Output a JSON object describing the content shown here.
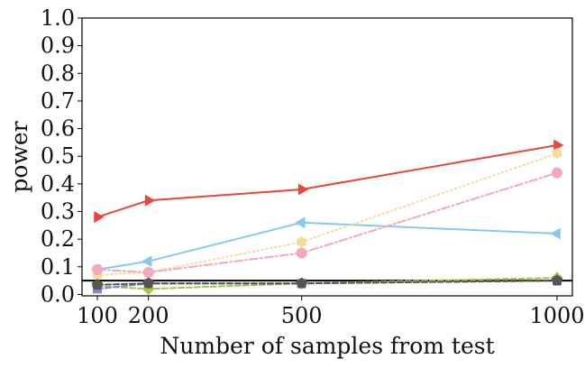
{
  "chart_data": {
    "type": "line",
    "title": "",
    "xlabel": "Number of samples from test",
    "ylabel": "power",
    "x": [
      100,
      200,
      500,
      1000
    ],
    "xticks": [
      100,
      200,
      500,
      1000
    ],
    "xtick_labels": [
      "100",
      "200",
      "500",
      "1000"
    ],
    "yticks": [
      0.0,
      0.1,
      0.2,
      0.3,
      0.4,
      0.5,
      0.6,
      0.7,
      0.8,
      0.9,
      1.0
    ],
    "ytick_labels": [
      "0.0",
      "0.1",
      "0.2",
      "0.3",
      "0.4",
      "0.5",
      "0.6",
      "0.7",
      "0.8",
      "0.9",
      "1.0"
    ],
    "xlim": [
      70,
      1030
    ],
    "ylim": [
      -0.005,
      1.0
    ],
    "grid": false,
    "reference_line": {
      "y": 0.05,
      "color": "#000000"
    },
    "series": [
      {
        "color": "#e8453c",
        "dash": "solid",
        "marker": "triangle-right",
        "values": [
          0.28,
          0.34,
          0.38,
          0.54
        ]
      },
      {
        "color": "#86c8f0",
        "dash": "solid",
        "marker": "triangle-left",
        "values": [
          0.09,
          0.12,
          0.26,
          0.22
        ]
      },
      {
        "color": "#f4dc9c",
        "dash": "dotted",
        "marker": "hexagon",
        "values": [
          0.07,
          0.08,
          0.19,
          0.51
        ]
      },
      {
        "color": "#f5a9b8",
        "dash": "dashdot",
        "marker": "circle",
        "values": [
          0.09,
          0.08,
          0.15,
          0.44
        ]
      },
      {
        "color": "#9ccc3c",
        "dash": "dashed",
        "marker": "diamond",
        "values": [
          0.03,
          0.02,
          0.04,
          0.06
        ]
      },
      {
        "color": "#8f7fd8",
        "dash": "dashed",
        "marker": "square",
        "values": [
          0.02,
          0.04,
          0.04,
          0.05
        ]
      },
      {
        "color": "#555555",
        "dash": "dashed",
        "marker": "pentagon",
        "values": [
          0.035,
          0.04,
          0.04,
          0.05
        ]
      }
    ]
  }
}
